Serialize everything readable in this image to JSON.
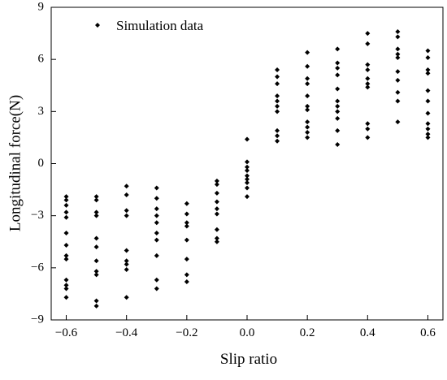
{
  "chart_data": {
    "type": "scatter",
    "xlabel": "Slip ratio",
    "ylabel": "Longitudinal force(N)",
    "xlim": [
      -0.65,
      0.65
    ],
    "ylim": [
      -9,
      9
    ],
    "xticks": [
      -0.6,
      -0.4,
      -0.2,
      0.0,
      0.2,
      0.4,
      0.6
    ],
    "xtick_labels": [
      "−0.6",
      "−0.4",
      "−0.2",
      "0.0",
      "0.2",
      "0.4",
      "0.6"
    ],
    "yticks": [
      -9,
      -6,
      -3,
      0,
      3,
      6,
      9
    ],
    "ytick_labels": [
      "−9",
      "−6",
      "−3",
      "0",
      "3",
      "6",
      "9"
    ],
    "grid": false,
    "legend_position": "top-left",
    "marker": "diamond",
    "series": [
      {
        "name": "Simulation data",
        "color": "#000000",
        "points": [
          {
            "x": -0.6,
            "y": -1.9
          },
          {
            "x": -0.6,
            "y": -2.1
          },
          {
            "x": -0.6,
            "y": -2.4
          },
          {
            "x": -0.6,
            "y": -2.8
          },
          {
            "x": -0.6,
            "y": -3.1
          },
          {
            "x": -0.6,
            "y": -4.0
          },
          {
            "x": -0.6,
            "y": -4.7
          },
          {
            "x": -0.6,
            "y": -5.3
          },
          {
            "x": -0.6,
            "y": -5.5
          },
          {
            "x": -0.6,
            "y": -6.7
          },
          {
            "x": -0.6,
            "y": -7.0
          },
          {
            "x": -0.6,
            "y": -7.2
          },
          {
            "x": -0.6,
            "y": -7.7
          },
          {
            "x": -0.5,
            "y": -1.9
          },
          {
            "x": -0.5,
            "y": -2.1
          },
          {
            "x": -0.5,
            "y": -2.8
          },
          {
            "x": -0.5,
            "y": -3.0
          },
          {
            "x": -0.5,
            "y": -4.3
          },
          {
            "x": -0.5,
            "y": -4.8
          },
          {
            "x": -0.5,
            "y": -5.6
          },
          {
            "x": -0.5,
            "y": -6.2
          },
          {
            "x": -0.5,
            "y": -6.4
          },
          {
            "x": -0.5,
            "y": -7.9
          },
          {
            "x": -0.5,
            "y": -8.2
          },
          {
            "x": -0.4,
            "y": -1.3
          },
          {
            "x": -0.4,
            "y": -1.8
          },
          {
            "x": -0.4,
            "y": -2.7
          },
          {
            "x": -0.4,
            "y": -3.0
          },
          {
            "x": -0.4,
            "y": -5.0
          },
          {
            "x": -0.4,
            "y": -5.6
          },
          {
            "x": -0.4,
            "y": -5.8
          },
          {
            "x": -0.4,
            "y": -6.1
          },
          {
            "x": -0.4,
            "y": -7.7
          },
          {
            "x": -0.3,
            "y": -1.4
          },
          {
            "x": -0.3,
            "y": -2.0
          },
          {
            "x": -0.3,
            "y": -2.6
          },
          {
            "x": -0.3,
            "y": -3.0
          },
          {
            "x": -0.3,
            "y": -3.4
          },
          {
            "x": -0.3,
            "y": -4.0
          },
          {
            "x": -0.3,
            "y": -4.4
          },
          {
            "x": -0.3,
            "y": -5.3
          },
          {
            "x": -0.3,
            "y": -6.7
          },
          {
            "x": -0.3,
            "y": -7.2
          },
          {
            "x": -0.2,
            "y": -2.3
          },
          {
            "x": -0.2,
            "y": -2.9
          },
          {
            "x": -0.2,
            "y": -3.4
          },
          {
            "x": -0.2,
            "y": -3.6
          },
          {
            "x": -0.2,
            "y": -4.4
          },
          {
            "x": -0.2,
            "y": -5.5
          },
          {
            "x": -0.2,
            "y": -6.4
          },
          {
            "x": -0.2,
            "y": -6.8
          },
          {
            "x": -0.1,
            "y": -1.0
          },
          {
            "x": -0.1,
            "y": -1.2
          },
          {
            "x": -0.1,
            "y": -1.7
          },
          {
            "x": -0.1,
            "y": -2.2
          },
          {
            "x": -0.1,
            "y": -2.6
          },
          {
            "x": -0.1,
            "y": -2.9
          },
          {
            "x": -0.1,
            "y": -3.8
          },
          {
            "x": -0.1,
            "y": -4.3
          },
          {
            "x": -0.1,
            "y": -4.5
          },
          {
            "x": 0.0,
            "y": 1.4
          },
          {
            "x": 0.0,
            "y": 0.1
          },
          {
            "x": 0.0,
            "y": -0.2
          },
          {
            "x": 0.0,
            "y": -0.4
          },
          {
            "x": 0.0,
            "y": -0.7
          },
          {
            "x": 0.0,
            "y": -0.9
          },
          {
            "x": 0.0,
            "y": -1.1
          },
          {
            "x": 0.0,
            "y": -1.4
          },
          {
            "x": 0.0,
            "y": -1.9
          },
          {
            "x": 0.1,
            "y": 5.4
          },
          {
            "x": 0.1,
            "y": 5.0
          },
          {
            "x": 0.1,
            "y": 4.6
          },
          {
            "x": 0.1,
            "y": 3.9
          },
          {
            "x": 0.1,
            "y": 3.6
          },
          {
            "x": 0.1,
            "y": 3.3
          },
          {
            "x": 0.1,
            "y": 3.0
          },
          {
            "x": 0.1,
            "y": 1.9
          },
          {
            "x": 0.1,
            "y": 1.6
          },
          {
            "x": 0.1,
            "y": 1.3
          },
          {
            "x": 0.2,
            "y": 6.4
          },
          {
            "x": 0.2,
            "y": 5.6
          },
          {
            "x": 0.2,
            "y": 4.9
          },
          {
            "x": 0.2,
            "y": 4.6
          },
          {
            "x": 0.2,
            "y": 3.9
          },
          {
            "x": 0.2,
            "y": 3.3
          },
          {
            "x": 0.2,
            "y": 3.1
          },
          {
            "x": 0.2,
            "y": 2.4
          },
          {
            "x": 0.2,
            "y": 2.1
          },
          {
            "x": 0.2,
            "y": 1.8
          },
          {
            "x": 0.2,
            "y": 1.5
          },
          {
            "x": 0.3,
            "y": 6.6
          },
          {
            "x": 0.3,
            "y": 5.8
          },
          {
            "x": 0.3,
            "y": 5.5
          },
          {
            "x": 0.3,
            "y": 5.1
          },
          {
            "x": 0.3,
            "y": 4.3
          },
          {
            "x": 0.3,
            "y": 3.6
          },
          {
            "x": 0.3,
            "y": 3.3
          },
          {
            "x": 0.3,
            "y": 3.0
          },
          {
            "x": 0.3,
            "y": 2.6
          },
          {
            "x": 0.3,
            "y": 1.9
          },
          {
            "x": 0.3,
            "y": 1.1
          },
          {
            "x": 0.4,
            "y": 7.5
          },
          {
            "x": 0.4,
            "y": 6.9
          },
          {
            "x": 0.4,
            "y": 5.7
          },
          {
            "x": 0.4,
            "y": 5.4
          },
          {
            "x": 0.4,
            "y": 4.9
          },
          {
            "x": 0.4,
            "y": 4.6
          },
          {
            "x": 0.4,
            "y": 4.4
          },
          {
            "x": 0.4,
            "y": 2.3
          },
          {
            "x": 0.4,
            "y": 2.0
          },
          {
            "x": 0.4,
            "y": 1.5
          },
          {
            "x": 0.5,
            "y": 7.6
          },
          {
            "x": 0.5,
            "y": 7.3
          },
          {
            "x": 0.5,
            "y": 6.6
          },
          {
            "x": 0.5,
            "y": 6.3
          },
          {
            "x": 0.5,
            "y": 6.1
          },
          {
            "x": 0.5,
            "y": 5.3
          },
          {
            "x": 0.5,
            "y": 4.8
          },
          {
            "x": 0.5,
            "y": 4.1
          },
          {
            "x": 0.5,
            "y": 3.6
          },
          {
            "x": 0.5,
            "y": 2.4
          },
          {
            "x": 0.6,
            "y": 6.5
          },
          {
            "x": 0.6,
            "y": 6.1
          },
          {
            "x": 0.6,
            "y": 5.4
          },
          {
            "x": 0.6,
            "y": 5.2
          },
          {
            "x": 0.6,
            "y": 4.2
          },
          {
            "x": 0.6,
            "y": 3.6
          },
          {
            "x": 0.6,
            "y": 2.9
          },
          {
            "x": 0.6,
            "y": 2.3
          },
          {
            "x": 0.6,
            "y": 2.0
          },
          {
            "x": 0.6,
            "y": 1.7
          },
          {
            "x": 0.6,
            "y": 1.5
          }
        ]
      }
    ]
  }
}
